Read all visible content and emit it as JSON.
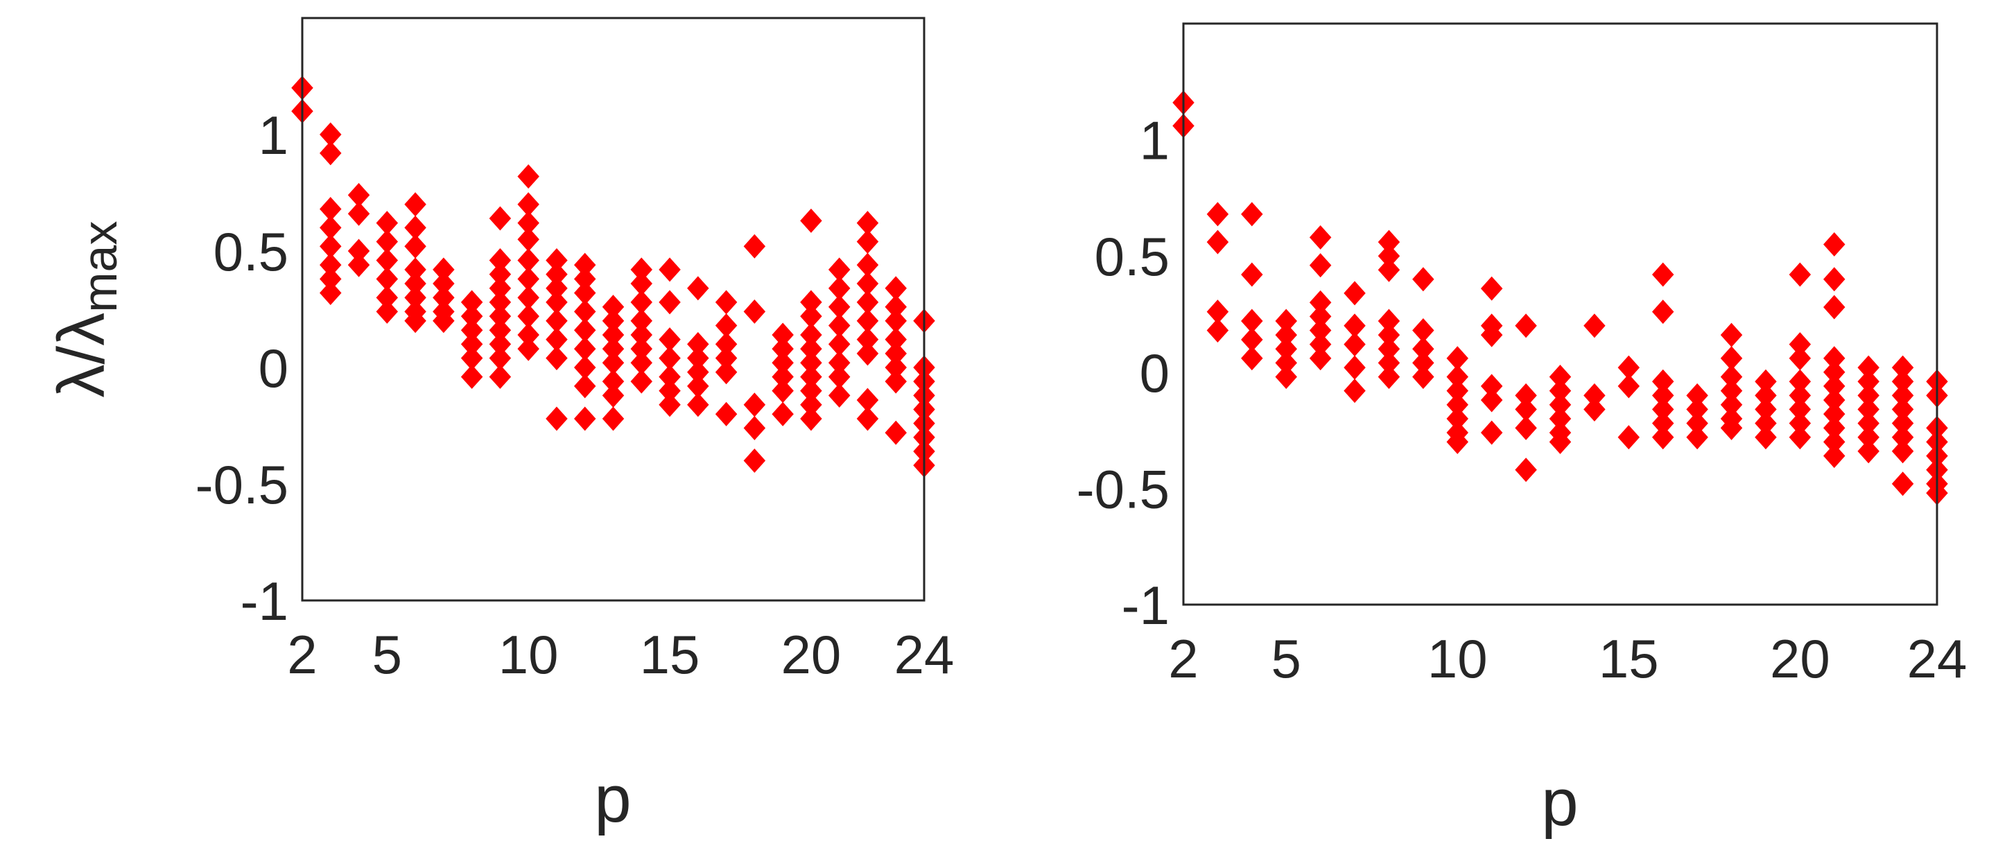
{
  "chart_data": [
    {
      "type": "scatter",
      "xlabel": "p",
      "ylabel": "λ/λ",
      "ylabel_subscript": "max",
      "xlim": [
        2,
        24
      ],
      "ylim": [
        -1,
        1.5
      ],
      "xticks": [
        "2",
        "5",
        "10",
        "15",
        "20",
        "24"
      ],
      "xtick_values": [
        2,
        5,
        10,
        15,
        20,
        24
      ],
      "yticks": [
        "-1",
        "-0.5",
        "0",
        "0.5",
        "1"
      ],
      "ytick_values": [
        -1,
        -0.5,
        0,
        0.5,
        1
      ],
      "grid": true,
      "marker": "diamond",
      "color": "#ff0000",
      "points": [
        [
          2,
          1.2
        ],
        [
          2,
          1.1
        ],
        [
          3,
          1.0
        ],
        [
          3,
          0.92
        ],
        [
          3,
          0.68
        ],
        [
          3,
          0.6
        ],
        [
          3,
          0.52
        ],
        [
          3,
          0.44
        ],
        [
          3,
          0.38
        ],
        [
          3,
          0.32
        ],
        [
          4,
          0.74
        ],
        [
          4,
          0.66
        ],
        [
          4,
          0.5
        ],
        [
          4,
          0.44
        ],
        [
          5,
          0.62
        ],
        [
          5,
          0.54
        ],
        [
          5,
          0.46
        ],
        [
          5,
          0.38
        ],
        [
          5,
          0.3
        ],
        [
          5,
          0.24
        ],
        [
          6,
          0.7
        ],
        [
          6,
          0.6
        ],
        [
          6,
          0.52
        ],
        [
          6,
          0.42
        ],
        [
          6,
          0.36
        ],
        [
          6,
          0.3
        ],
        [
          6,
          0.24
        ],
        [
          6,
          0.2
        ],
        [
          7,
          0.42
        ],
        [
          7,
          0.36
        ],
        [
          7,
          0.3
        ],
        [
          7,
          0.24
        ],
        [
          7,
          0.2
        ],
        [
          8,
          0.28
        ],
        [
          8,
          0.22
        ],
        [
          8,
          0.16
        ],
        [
          8,
          0.1
        ],
        [
          8,
          0.04
        ],
        [
          8,
          -0.04
        ],
        [
          9,
          0.64
        ],
        [
          9,
          0.46
        ],
        [
          9,
          0.4
        ],
        [
          9,
          0.34
        ],
        [
          9,
          0.28
        ],
        [
          9,
          0.22
        ],
        [
          9,
          0.16
        ],
        [
          9,
          0.1
        ],
        [
          9,
          0.04
        ],
        [
          9,
          -0.04
        ],
        [
          10,
          0.82
        ],
        [
          10,
          0.7
        ],
        [
          10,
          0.62
        ],
        [
          10,
          0.55
        ],
        [
          10,
          0.46
        ],
        [
          10,
          0.38
        ],
        [
          10,
          0.3
        ],
        [
          10,
          0.22
        ],
        [
          10,
          0.14
        ],
        [
          10,
          0.08
        ],
        [
          11,
          0.46
        ],
        [
          11,
          0.4
        ],
        [
          11,
          0.34
        ],
        [
          11,
          0.28
        ],
        [
          11,
          0.2
        ],
        [
          11,
          0.12
        ],
        [
          11,
          0.04
        ],
        [
          11,
          -0.22
        ],
        [
          12,
          0.44
        ],
        [
          12,
          0.38
        ],
        [
          12,
          0.32
        ],
        [
          12,
          0.24
        ],
        [
          12,
          0.16
        ],
        [
          12,
          0.08
        ],
        [
          12,
          0.0
        ],
        [
          12,
          -0.08
        ],
        [
          12,
          -0.22
        ],
        [
          13,
          0.26
        ],
        [
          13,
          0.2
        ],
        [
          13,
          0.14
        ],
        [
          13,
          0.08
        ],
        [
          13,
          0.02
        ],
        [
          13,
          -0.06
        ],
        [
          13,
          -0.12
        ],
        [
          13,
          -0.22
        ],
        [
          14,
          0.42
        ],
        [
          14,
          0.36
        ],
        [
          14,
          0.28
        ],
        [
          14,
          0.2
        ],
        [
          14,
          0.14
        ],
        [
          14,
          0.08
        ],
        [
          14,
          0.02
        ],
        [
          14,
          -0.06
        ],
        [
          15,
          0.42
        ],
        [
          15,
          0.28
        ],
        [
          15,
          0.12
        ],
        [
          15,
          0.04
        ],
        [
          15,
          -0.04
        ],
        [
          15,
          -0.1
        ],
        [
          15,
          -0.16
        ],
        [
          16,
          0.34
        ],
        [
          16,
          0.1
        ],
        [
          16,
          0.04
        ],
        [
          16,
          -0.02
        ],
        [
          16,
          -0.08
        ],
        [
          16,
          -0.16
        ],
        [
          17,
          0.28
        ],
        [
          17,
          0.18
        ],
        [
          17,
          0.1
        ],
        [
          17,
          0.04
        ],
        [
          17,
          -0.02
        ],
        [
          17,
          -0.2
        ],
        [
          18,
          0.52
        ],
        [
          18,
          0.24
        ],
        [
          18,
          -0.16
        ],
        [
          18,
          -0.26
        ],
        [
          18,
          -0.4
        ],
        [
          19,
          0.14
        ],
        [
          19,
          0.08
        ],
        [
          19,
          0.02
        ],
        [
          19,
          -0.04
        ],
        [
          19,
          -0.1
        ],
        [
          19,
          -0.2
        ],
        [
          20,
          0.63
        ],
        [
          20,
          0.28
        ],
        [
          20,
          0.22
        ],
        [
          20,
          0.14
        ],
        [
          20,
          0.08
        ],
        [
          20,
          0.02
        ],
        [
          20,
          -0.04
        ],
        [
          20,
          -0.1
        ],
        [
          20,
          -0.16
        ],
        [
          20,
          -0.22
        ],
        [
          21,
          0.42
        ],
        [
          21,
          0.34
        ],
        [
          21,
          0.26
        ],
        [
          21,
          0.18
        ],
        [
          21,
          0.1
        ],
        [
          21,
          0.02
        ],
        [
          21,
          -0.04
        ],
        [
          21,
          -0.12
        ],
        [
          22,
          0.62
        ],
        [
          22,
          0.54
        ],
        [
          22,
          0.44
        ],
        [
          22,
          0.36
        ],
        [
          22,
          0.28
        ],
        [
          22,
          0.2
        ],
        [
          22,
          0.12
        ],
        [
          22,
          0.06
        ],
        [
          22,
          -0.14
        ],
        [
          22,
          -0.22
        ],
        [
          23,
          0.34
        ],
        [
          23,
          0.26
        ],
        [
          23,
          0.2
        ],
        [
          23,
          0.12
        ],
        [
          23,
          0.06
        ],
        [
          23,
          0.0
        ],
        [
          23,
          -0.06
        ],
        [
          23,
          -0.28
        ],
        [
          24,
          0.2
        ],
        [
          24,
          0.0
        ],
        [
          24,
          -0.06
        ],
        [
          24,
          -0.12
        ],
        [
          24,
          -0.18
        ],
        [
          24,
          -0.24
        ],
        [
          24,
          -0.3
        ],
        [
          24,
          -0.36
        ],
        [
          24,
          -0.42
        ]
      ]
    },
    {
      "type": "scatter",
      "xlabel": "p",
      "ylabel": "",
      "xlim": [
        2,
        24
      ],
      "ylim": [
        -1,
        1.5
      ],
      "xticks": [
        "2",
        "5",
        "10",
        "15",
        "20",
        "24"
      ],
      "xtick_values": [
        2,
        5,
        10,
        15,
        20,
        24
      ],
      "yticks": [
        "-1",
        "-0.5",
        "0",
        "0.5",
        "1"
      ],
      "ytick_values": [
        -1,
        -0.5,
        0,
        0.5,
        1
      ],
      "grid": true,
      "marker": "diamond",
      "color": "#ff0000",
      "points": [
        [
          2,
          1.16
        ],
        [
          2,
          1.06
        ],
        [
          3,
          0.68
        ],
        [
          3,
          0.56
        ],
        [
          3,
          0.26
        ],
        [
          3,
          0.18
        ],
        [
          4,
          0.68
        ],
        [
          4,
          0.42
        ],
        [
          4,
          0.22
        ],
        [
          4,
          0.14
        ],
        [
          4,
          0.06
        ],
        [
          5,
          0.22
        ],
        [
          5,
          0.16
        ],
        [
          5,
          0.1
        ],
        [
          5,
          0.04
        ],
        [
          5,
          -0.02
        ],
        [
          6,
          0.58
        ],
        [
          6,
          0.46
        ],
        [
          6,
          0.3
        ],
        [
          6,
          0.24
        ],
        [
          6,
          0.18
        ],
        [
          6,
          0.12
        ],
        [
          6,
          0.06
        ],
        [
          7,
          0.34
        ],
        [
          7,
          0.2
        ],
        [
          7,
          0.12
        ],
        [
          7,
          0.02
        ],
        [
          7,
          -0.08
        ],
        [
          8,
          0.56
        ],
        [
          8,
          0.5
        ],
        [
          8,
          0.44
        ],
        [
          8,
          0.22
        ],
        [
          8,
          0.16
        ],
        [
          8,
          0.1
        ],
        [
          8,
          0.04
        ],
        [
          8,
          -0.02
        ],
        [
          9,
          0.4
        ],
        [
          9,
          0.18
        ],
        [
          9,
          0.1
        ],
        [
          9,
          0.04
        ],
        [
          9,
          -0.02
        ],
        [
          10,
          0.06
        ],
        [
          10,
          -0.02
        ],
        [
          10,
          -0.08
        ],
        [
          10,
          -0.14
        ],
        [
          10,
          -0.2
        ],
        [
          10,
          -0.26
        ],
        [
          10,
          -0.3
        ],
        [
          11,
          0.36
        ],
        [
          11,
          0.2
        ],
        [
          11,
          0.16
        ],
        [
          11,
          -0.06
        ],
        [
          11,
          -0.12
        ],
        [
          11,
          -0.26
        ],
        [
          12,
          0.2
        ],
        [
          12,
          -0.1
        ],
        [
          12,
          -0.16
        ],
        [
          12,
          -0.24
        ],
        [
          12,
          -0.42
        ],
        [
          13,
          -0.02
        ],
        [
          13,
          -0.08
        ],
        [
          13,
          -0.14
        ],
        [
          13,
          -0.2
        ],
        [
          13,
          -0.26
        ],
        [
          13,
          -0.3
        ],
        [
          14,
          0.2
        ],
        [
          14,
          -0.1
        ],
        [
          14,
          -0.16
        ],
        [
          15,
          0.02
        ],
        [
          15,
          -0.06
        ],
        [
          15,
          -0.28
        ],
        [
          16,
          0.42
        ],
        [
          16,
          0.26
        ],
        [
          16,
          -0.04
        ],
        [
          16,
          -0.1
        ],
        [
          16,
          -0.16
        ],
        [
          16,
          -0.22
        ],
        [
          16,
          -0.28
        ],
        [
          17,
          -0.1
        ],
        [
          17,
          -0.16
        ],
        [
          17,
          -0.22
        ],
        [
          17,
          -0.28
        ],
        [
          18,
          0.16
        ],
        [
          18,
          0.06
        ],
        [
          18,
          -0.02
        ],
        [
          18,
          -0.08
        ],
        [
          18,
          -0.14
        ],
        [
          18,
          -0.2
        ],
        [
          18,
          -0.24
        ],
        [
          19,
          -0.04
        ],
        [
          19,
          -0.1
        ],
        [
          19,
          -0.16
        ],
        [
          19,
          -0.22
        ],
        [
          19,
          -0.28
        ],
        [
          20,
          0.42
        ],
        [
          20,
          0.12
        ],
        [
          20,
          0.06
        ],
        [
          20,
          -0.04
        ],
        [
          20,
          -0.1
        ],
        [
          20,
          -0.16
        ],
        [
          20,
          -0.22
        ],
        [
          20,
          -0.28
        ],
        [
          21,
          0.55
        ],
        [
          21,
          0.4
        ],
        [
          21,
          0.28
        ],
        [
          21,
          0.06
        ],
        [
          21,
          0.0
        ],
        [
          21,
          -0.06
        ],
        [
          21,
          -0.12
        ],
        [
          21,
          -0.18
        ],
        [
          21,
          -0.24
        ],
        [
          21,
          -0.3
        ],
        [
          21,
          -0.36
        ],
        [
          22,
          0.02
        ],
        [
          22,
          -0.04
        ],
        [
          22,
          -0.1
        ],
        [
          22,
          -0.16
        ],
        [
          22,
          -0.22
        ],
        [
          22,
          -0.28
        ],
        [
          22,
          -0.34
        ],
        [
          23,
          0.02
        ],
        [
          23,
          -0.04
        ],
        [
          23,
          -0.1
        ],
        [
          23,
          -0.16
        ],
        [
          23,
          -0.22
        ],
        [
          23,
          -0.28
        ],
        [
          23,
          -0.34
        ],
        [
          23,
          -0.48
        ],
        [
          24,
          -0.04
        ],
        [
          24,
          -0.1
        ],
        [
          24,
          -0.24
        ],
        [
          24,
          -0.3
        ],
        [
          24,
          -0.36
        ],
        [
          24,
          -0.42
        ],
        [
          24,
          -0.48
        ],
        [
          24,
          -0.52
        ]
      ]
    }
  ]
}
